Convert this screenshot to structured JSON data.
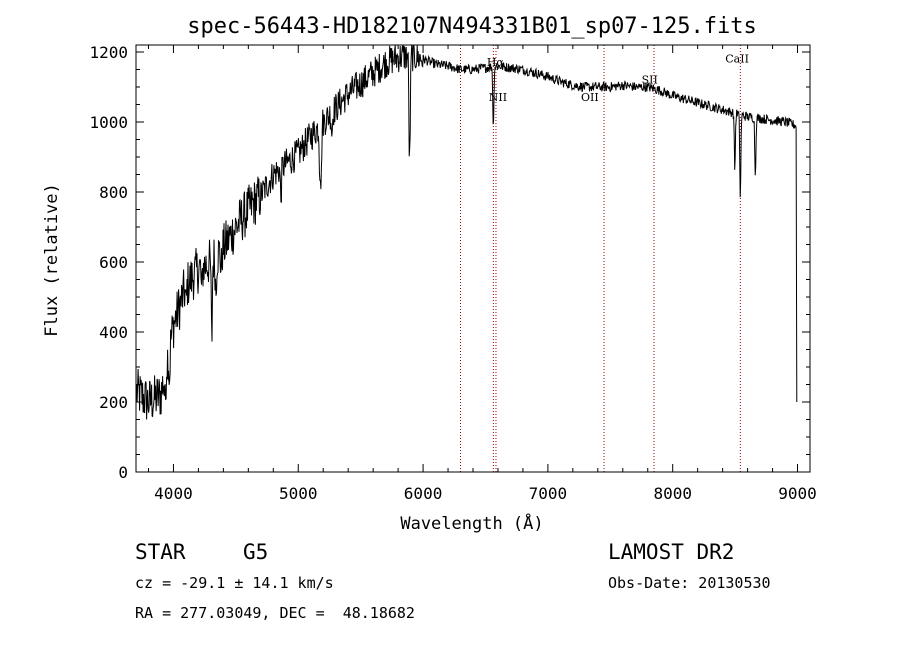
{
  "chart_data": {
    "type": "line",
    "title": "spec-56443-HD182107N494331B01_sp07-125.fits",
    "xlabel": "Wavelength (Å)",
    "ylabel": "Flux (relative)",
    "xlim": [
      3700,
      9100
    ],
    "ylim": [
      0,
      1220
    ],
    "x_ticks": [
      4000,
      5000,
      6000,
      7000,
      8000,
      9000
    ],
    "x_tick_labels": [
      "4000",
      "5000",
      "6000",
      "7000",
      "8000",
      "9000"
    ],
    "y_ticks": [
      0,
      200,
      400,
      600,
      800,
      1000,
      1200
    ],
    "y_tick_labels": [
      "0",
      "200",
      "400",
      "600",
      "800",
      "1000",
      "1200"
    ],
    "grid": false,
    "continuum": [
      [
        3700,
        230
      ],
      [
        3800,
        200
      ],
      [
        3900,
        220
      ],
      [
        4000,
        420
      ],
      [
        4100,
        530
      ],
      [
        4200,
        580
      ],
      [
        4300,
        600
      ],
      [
        4400,
        640
      ],
      [
        4500,
        700
      ],
      [
        4600,
        750
      ],
      [
        4700,
        790
      ],
      [
        4800,
        850
      ],
      [
        4900,
        880
      ],
      [
        5000,
        910
      ],
      [
        5100,
        960
      ],
      [
        5200,
        1000
      ],
      [
        5300,
        1040
      ],
      [
        5400,
        1080
      ],
      [
        5500,
        1110
      ],
      [
        5600,
        1140
      ],
      [
        5700,
        1170
      ],
      [
        5800,
        1185
      ],
      [
        5900,
        1190
      ],
      [
        6000,
        1180
      ],
      [
        6100,
        1165
      ],
      [
        6200,
        1160
      ],
      [
        6300,
        1150
      ],
      [
        6400,
        1150
      ],
      [
        6500,
        1155
      ],
      [
        6600,
        1160
      ],
      [
        6700,
        1155
      ],
      [
        6800,
        1150
      ],
      [
        6900,
        1140
      ],
      [
        7000,
        1130
      ],
      [
        7100,
        1115
      ],
      [
        7200,
        1105
      ],
      [
        7300,
        1100
      ],
      [
        7400,
        1100
      ],
      [
        7500,
        1100
      ],
      [
        7600,
        1105
      ],
      [
        7700,
        1100
      ],
      [
        7800,
        1100
      ],
      [
        7900,
        1090
      ],
      [
        8000,
        1075
      ],
      [
        8100,
        1065
      ],
      [
        8200,
        1055
      ],
      [
        8300,
        1045
      ],
      [
        8400,
        1035
      ],
      [
        8500,
        1025
      ],
      [
        8600,
        1015
      ],
      [
        8700,
        1010
      ],
      [
        8800,
        1005
      ],
      [
        8900,
        1000
      ],
      [
        8990,
        990
      ]
    ],
    "absorption_features": [
      {
        "x": 3934,
        "depth": 100
      },
      {
        "x": 3968,
        "depth": 90
      },
      {
        "x": 4101,
        "depth": 60
      },
      {
        "x": 4227,
        "depth": 80
      },
      {
        "x": 4307,
        "depth": 230
      },
      {
        "x": 4340,
        "depth": 100
      },
      {
        "x": 4383,
        "depth": 60
      },
      {
        "x": 4861,
        "depth": 90
      },
      {
        "x": 5172,
        "depth": 120
      },
      {
        "x": 5183,
        "depth": 170
      },
      {
        "x": 5270,
        "depth": 60
      },
      {
        "x": 5890,
        "depth": 230
      },
      {
        "x": 5896,
        "depth": 150
      },
      {
        "x": 6563,
        "depth": 180
      },
      {
        "x": 8498,
        "depth": 160
      },
      {
        "x": 8542,
        "depth": 240
      },
      {
        "x": 8662,
        "depth": 170
      }
    ],
    "line_markers": [
      {
        "label": "Hα",
        "x": 6563,
        "label_y": 1160
      },
      {
        "label": "NII",
        "x": 6584,
        "label_y": 1060
      },
      {
        "label": "OII",
        "x": 7320,
        "label_y": 1060
      },
      {
        "label": "SII",
        "x": 7800,
        "label_y": 1110
      },
      {
        "label": "CaII",
        "x": 8500,
        "label_y": 1170
      }
    ],
    "marker_lines_x": [
      6300,
      6563,
      6584,
      7450,
      7850,
      8542
    ]
  },
  "info": {
    "object_type": "STAR",
    "subclass": "G5",
    "survey": "LAMOST DR2",
    "redshift": "cz = -29.1 ± 14.1 km/s",
    "obs_date": "Obs-Date: 20130530",
    "coordinates": "RA = 277.03049, DEC =  48.18682"
  }
}
